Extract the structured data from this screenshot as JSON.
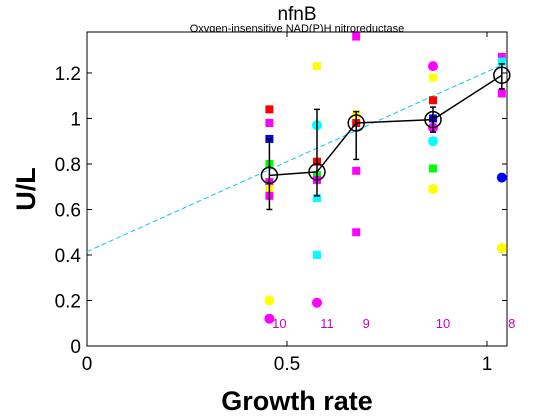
{
  "chart_data": {
    "type": "scatter",
    "title": "nfnB",
    "subtitle": "Oxygen-insensitive NAD(P)H nitroreductase",
    "xlabel": "Growth rate",
    "ylabel": "U/L",
    "xlim": [
      0,
      1.05
    ],
    "ylim": [
      0,
      1.38
    ],
    "xticks": [
      0,
      0.5,
      1
    ],
    "xtick_labels": [
      "0",
      "0.5",
      "1"
    ],
    "yticks": [
      0,
      0.2,
      0.4,
      0.6,
      0.8,
      1.0,
      1.2
    ],
    "ytick_labels": [
      "0",
      "0.2",
      "0.4",
      "0.6",
      "0.8",
      "1",
      "1.2"
    ],
    "grid": false,
    "colors": {
      "red": "#ff0000",
      "blue": "#0000ff",
      "green": "#00ff00",
      "magenta": "#ff00ff",
      "yellow": "#ffff00",
      "cyan": "#00ffff",
      "mean": "#000000",
      "fit": "#00ccee",
      "count": "#cc00cc"
    },
    "points": [
      {
        "x": 0.456,
        "y": 1.04,
        "color": "red",
        "marker": "square"
      },
      {
        "x": 0.456,
        "y": 0.98,
        "color": "magenta",
        "marker": "square"
      },
      {
        "x": 0.456,
        "y": 0.91,
        "color": "blue",
        "marker": "square"
      },
      {
        "x": 0.456,
        "y": 0.8,
        "color": "green",
        "marker": "square"
      },
      {
        "x": 0.456,
        "y": 0.72,
        "color": "magenta",
        "marker": "square"
      },
      {
        "x": 0.456,
        "y": 0.69,
        "color": "yellow",
        "marker": "square"
      },
      {
        "x": 0.456,
        "y": 0.66,
        "color": "magenta",
        "marker": "square"
      },
      {
        "x": 0.456,
        "y": 0.2,
        "color": "yellow",
        "marker": "circle"
      },
      {
        "x": 0.456,
        "y": 0.12,
        "color": "magenta",
        "marker": "circle"
      },
      {
        "x": 0.575,
        "y": 1.23,
        "color": "yellow",
        "marker": "square"
      },
      {
        "x": 0.575,
        "y": 0.97,
        "color": "cyan",
        "marker": "circle"
      },
      {
        "x": 0.575,
        "y": 0.81,
        "color": "red",
        "marker": "square"
      },
      {
        "x": 0.575,
        "y": 0.75,
        "color": "green",
        "marker": "square"
      },
      {
        "x": 0.575,
        "y": 0.73,
        "color": "magenta",
        "marker": "square"
      },
      {
        "x": 0.575,
        "y": 0.65,
        "color": "cyan",
        "marker": "square"
      },
      {
        "x": 0.575,
        "y": 0.4,
        "color": "cyan",
        "marker": "square"
      },
      {
        "x": 0.575,
        "y": 0.19,
        "color": "magenta",
        "marker": "circle"
      },
      {
        "x": 0.673,
        "y": 1.36,
        "color": "magenta",
        "marker": "square"
      },
      {
        "x": 0.673,
        "y": 1.02,
        "color": "yellow",
        "marker": "square"
      },
      {
        "x": 0.673,
        "y": 0.98,
        "color": "red",
        "marker": "square"
      },
      {
        "x": 0.673,
        "y": 0.77,
        "color": "magenta",
        "marker": "square"
      },
      {
        "x": 0.673,
        "y": 0.5,
        "color": "magenta",
        "marker": "square"
      },
      {
        "x": 0.865,
        "y": 1.23,
        "color": "magenta",
        "marker": "circle"
      },
      {
        "x": 0.865,
        "y": 1.18,
        "color": "yellow",
        "marker": "square"
      },
      {
        "x": 0.865,
        "y": 1.08,
        "color": "red",
        "marker": "square"
      },
      {
        "x": 0.865,
        "y": 1.0,
        "color": "blue",
        "marker": "square"
      },
      {
        "x": 0.865,
        "y": 0.96,
        "color": "magenta",
        "marker": "circle"
      },
      {
        "x": 0.865,
        "y": 0.9,
        "color": "cyan",
        "marker": "circle"
      },
      {
        "x": 0.865,
        "y": 0.78,
        "color": "green",
        "marker": "square"
      },
      {
        "x": 0.865,
        "y": 0.69,
        "color": "yellow",
        "marker": "circle"
      },
      {
        "x": 1.037,
        "y": 1.27,
        "color": "magenta",
        "marker": "square"
      },
      {
        "x": 1.037,
        "y": 1.25,
        "color": "cyan",
        "marker": "square"
      },
      {
        "x": 1.037,
        "y": 1.11,
        "color": "magenta",
        "marker": "square"
      },
      {
        "x": 1.037,
        "y": 0.74,
        "color": "blue",
        "marker": "circle"
      },
      {
        "x": 1.037,
        "y": 0.43,
        "color": "yellow",
        "marker": "circle"
      }
    ],
    "means": [
      {
        "x": 0.456,
        "y": 0.75,
        "err_low": 0.6,
        "err_high": 0.91
      },
      {
        "x": 0.575,
        "y": 0.765,
        "err_low": 0.66,
        "err_high": 1.04
      },
      {
        "x": 0.673,
        "y": 0.98,
        "err_low": 0.82,
        "err_high": 1.03
      },
      {
        "x": 0.865,
        "y": 0.995,
        "err_low": 0.94,
        "err_high": 1.05
      },
      {
        "x": 1.037,
        "y": 1.19,
        "err_low": 1.13,
        "err_high": 1.24
      }
    ],
    "fit_line": {
      "x": [
        0,
        1.05
      ],
      "y": [
        0.415,
        1.245
      ]
    },
    "counts": [
      {
        "x": 0.456,
        "label": "10"
      },
      {
        "x": 0.575,
        "label": "11"
      },
      {
        "x": 0.673,
        "label": "9"
      },
      {
        "x": 0.865,
        "label": "10"
      },
      {
        "x": 1.037,
        "label": "8"
      }
    ]
  }
}
